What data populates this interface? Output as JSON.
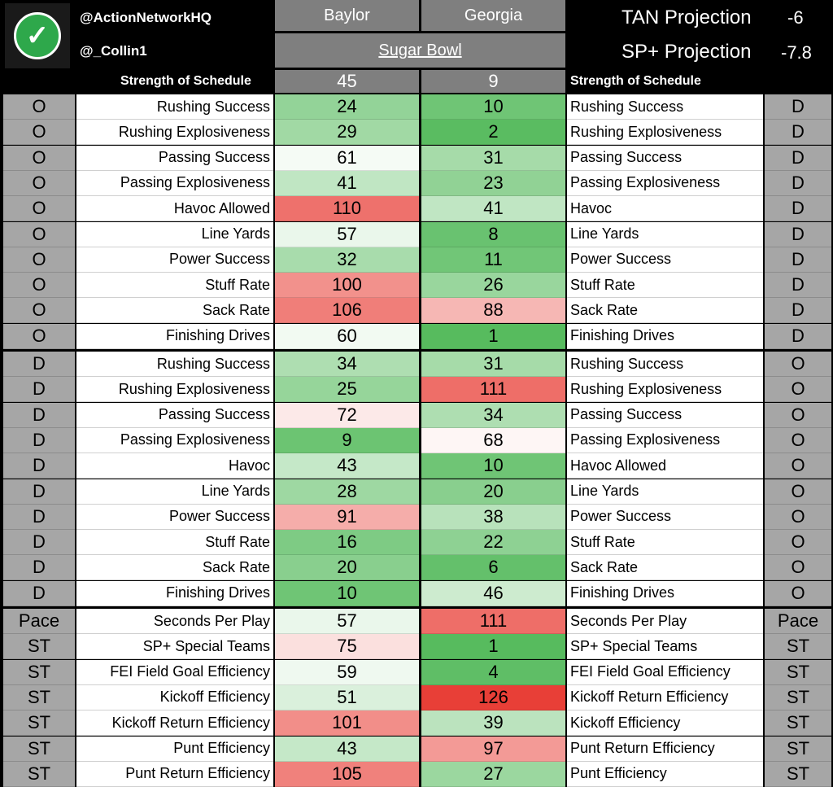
{
  "header": {
    "logo_icon": "checkmark-icon",
    "handle1": "@ActionNetworkHQ",
    "handle2": "@_Collin1",
    "team_left": "Baylor",
    "team_right": "Georgia",
    "bowl": "Sugar Bowl",
    "tan_label": "TAN Projection",
    "tan_value": "-6",
    "sp_label": "SP+ Projection",
    "sp_value": "-7.8",
    "sos_label_left": "Strength of Schedule",
    "sos_label_right": "Strength of Schedule",
    "sos_left": "45",
    "sos_right": "9"
  },
  "rows": [
    {
      "ls": "O",
      "lm": "Rushing Success",
      "lv": "24",
      "rv": "10",
      "rm": "Rushing Success",
      "rs": "D"
    },
    {
      "ls": "O",
      "lm": "Rushing Explosiveness",
      "lv": "29",
      "rv": "2",
      "rm": "Rushing Explosiveness",
      "rs": "D"
    },
    {
      "ls": "O",
      "lm": "Passing Success",
      "lv": "61",
      "rv": "31",
      "rm": "Passing Success",
      "rs": "D"
    },
    {
      "ls": "O",
      "lm": "Passing Explosiveness",
      "lv": "41",
      "rv": "23",
      "rm": "Passing Explosiveness",
      "rs": "D"
    },
    {
      "ls": "O",
      "lm": "Havoc Allowed",
      "lv": "110",
      "rv": "41",
      "rm": "Havoc",
      "rs": "D"
    },
    {
      "ls": "O",
      "lm": "Line Yards",
      "lv": "57",
      "rv": "8",
      "rm": "Line Yards",
      "rs": "D"
    },
    {
      "ls": "O",
      "lm": "Power Success",
      "lv": "32",
      "rv": "11",
      "rm": "Power Success",
      "rs": "D"
    },
    {
      "ls": "O",
      "lm": "Stuff Rate",
      "lv": "100",
      "rv": "26",
      "rm": "Stuff Rate",
      "rs": "D"
    },
    {
      "ls": "O",
      "lm": "Sack Rate",
      "lv": "106",
      "rv": "88",
      "rm": "Sack Rate",
      "rs": "D"
    },
    {
      "ls": "O",
      "lm": "Finishing Drives",
      "lv": "60",
      "rv": "1",
      "rm": "Finishing Drives",
      "rs": "D"
    },
    {
      "ls": "D",
      "lm": "Rushing Success",
      "lv": "34",
      "rv": "31",
      "rm": "Rushing Success",
      "rs": "O"
    },
    {
      "ls": "D",
      "lm": "Rushing Explosiveness",
      "lv": "25",
      "rv": "111",
      "rm": "Rushing Explosiveness",
      "rs": "O"
    },
    {
      "ls": "D",
      "lm": "Passing Success",
      "lv": "72",
      "rv": "34",
      "rm": "Passing Success",
      "rs": "O"
    },
    {
      "ls": "D",
      "lm": "Passing Explosiveness",
      "lv": "9",
      "rv": "68",
      "rm": "Passing Explosiveness",
      "rs": "O"
    },
    {
      "ls": "D",
      "lm": "Havoc",
      "lv": "43",
      "rv": "10",
      "rm": "Havoc Allowed",
      "rs": "O"
    },
    {
      "ls": "D",
      "lm": "Line Yards",
      "lv": "28",
      "rv": "20",
      "rm": "Line Yards",
      "rs": "O"
    },
    {
      "ls": "D",
      "lm": "Power Success",
      "lv": "91",
      "rv": "38",
      "rm": "Power Success",
      "rs": "O"
    },
    {
      "ls": "D",
      "lm": "Stuff Rate",
      "lv": "16",
      "rv": "22",
      "rm": "Stuff Rate",
      "rs": "O"
    },
    {
      "ls": "D",
      "lm": "Sack Rate",
      "lv": "20",
      "rv": "6",
      "rm": "Sack Rate",
      "rs": "O"
    },
    {
      "ls": "D",
      "lm": "Finishing Drives",
      "lv": "10",
      "rv": "46",
      "rm": "Finishing Drives",
      "rs": "O"
    },
    {
      "ls": "Pace",
      "lm": "Seconds Per Play",
      "lv": "57",
      "rv": "111",
      "rm": "Seconds Per Play",
      "rs": "Pace"
    },
    {
      "ls": "ST",
      "lm": "SP+ Special Teams",
      "lv": "75",
      "rv": "1",
      "rm": "SP+ Special Teams",
      "rs": "ST"
    },
    {
      "ls": "ST",
      "lm": "FEI Field Goal Efficiency",
      "lv": "59",
      "rv": "4",
      "rm": "FEI Field Goal Efficiency",
      "rs": "ST"
    },
    {
      "ls": "ST",
      "lm": "Kickoff Efficiency",
      "lv": "51",
      "rv": "126",
      "rm": "Kickoff Return Efficiency",
      "rs": "ST"
    },
    {
      "ls": "ST",
      "lm": "Kickoff Return Efficiency",
      "lv": "101",
      "rv": "39",
      "rm": "Kickoff Efficiency",
      "rs": "ST"
    },
    {
      "ls": "ST",
      "lm": "Punt Efficiency",
      "lv": "43",
      "rv": "97",
      "rm": "Punt Return Efficiency",
      "rs": "ST"
    },
    {
      "ls": "ST",
      "lm": "Punt Return Efficiency",
      "lv": "105",
      "rv": "27",
      "rm": "Punt Efficiency",
      "rs": "ST"
    }
  ],
  "colors": {
    "header_bg": "#000000",
    "team_bg": "#7f7f7f",
    "side_bg": "#a6a6a6",
    "good": "#57bb5e",
    "neutral": "#ffffff",
    "bad": "#e8453c"
  }
}
